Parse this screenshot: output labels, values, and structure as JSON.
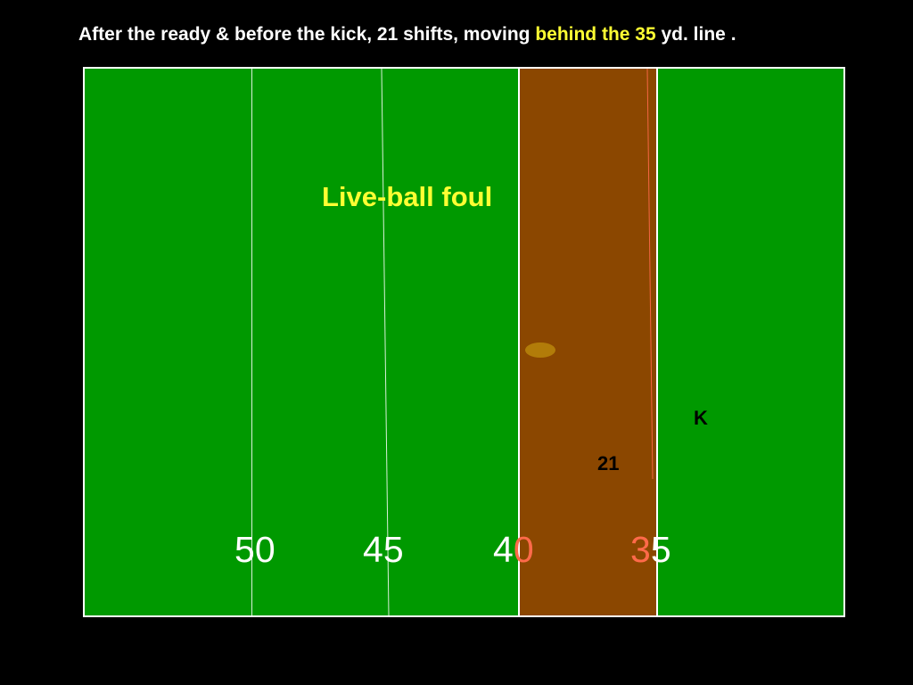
{
  "title": {
    "prefix": "After the ready & before the kick, 21 shifts, moving ",
    "highlight": "behind the 35",
    "suffix": " yd. line ."
  },
  "field": {
    "foul_label": "Live-ball foul",
    "players": {
      "shifter": "21",
      "kicker": "K"
    },
    "yard_numbers": [
      {
        "first": "5",
        "second": "0"
      },
      {
        "first": "4",
        "second": "5"
      },
      {
        "first": "4",
        "second": "0"
      },
      {
        "first": "3",
        "second": "5"
      }
    ]
  },
  "colors": {
    "background": "#000000",
    "field_green": "#009900",
    "zone_brown": "#8b4700",
    "highlight_yellow": "#ffff33",
    "accent_red": "#ff6a4a",
    "ball": "#b8860b"
  }
}
